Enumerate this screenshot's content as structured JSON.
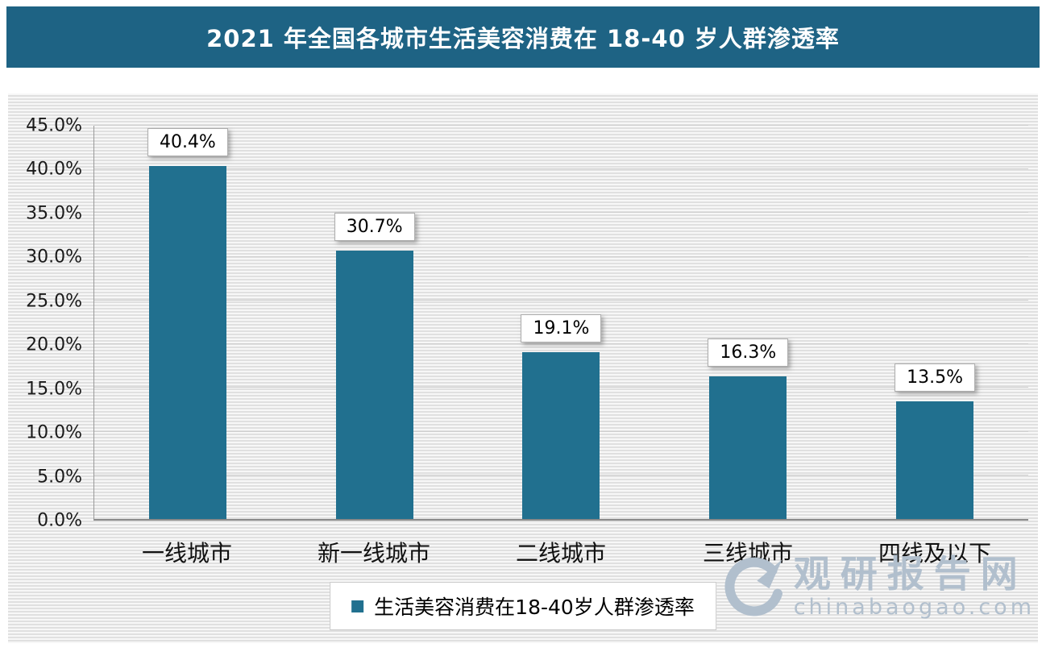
{
  "title": "2021 年全国各城市生活美容消费在 18-40 岁人群渗透率",
  "colors": {
    "banner_bg": "#1e6384",
    "bar": "#21708f",
    "watermark": "#b1bfcd"
  },
  "chart_data": {
    "type": "bar",
    "title": "2021 年全国各城市生活美容消费在 18-40 岁人群渗透率",
    "categories": [
      "一线城市",
      "新一线城市",
      "二线城市",
      "三线城市",
      "四线及以下"
    ],
    "values": [
      40.4,
      30.7,
      19.1,
      16.3,
      13.5
    ],
    "value_labels": [
      "40.4%",
      "30.7%",
      "19.1%",
      "16.3%",
      "13.5%"
    ],
    "xlabel": "",
    "ylabel": "",
    "ylim": [
      0,
      45
    ],
    "ytick_step": 5,
    "ytick_labels": [
      "0.0%",
      "5.0%",
      "10.0%",
      "15.0%",
      "20.0%",
      "25.0%",
      "30.0%",
      "35.0%",
      "40.0%",
      "45.0%"
    ],
    "grid": true,
    "legend": [
      "生活美容消费在18-40岁人群渗透率"
    ],
    "legend_position": "bottom"
  },
  "legend": {
    "label": "生活美容消费在18-40岁人群渗透率"
  },
  "watermark": {
    "name": "观研报告网",
    "domain": "chinabaogao.com"
  }
}
